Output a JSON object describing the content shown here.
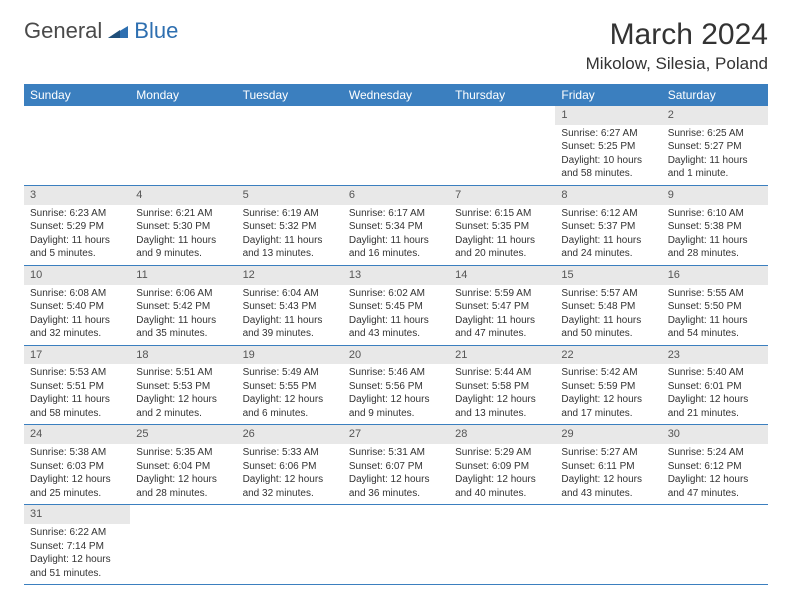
{
  "logo": {
    "part1": "General",
    "part2": "Blue"
  },
  "title": "March 2024",
  "location": "Mikolow, Silesia, Poland",
  "colors": {
    "header_bg": "#3b7fbf",
    "daynum_bg": "#e8e8e8",
    "row_divider": "#3b7fbf"
  },
  "daynames": [
    "Sunday",
    "Monday",
    "Tuesday",
    "Wednesday",
    "Thursday",
    "Friday",
    "Saturday"
  ],
  "weeks": [
    [
      null,
      null,
      null,
      null,
      null,
      {
        "n": "1",
        "sr": "Sunrise: 6:27 AM",
        "ss": "Sunset: 5:25 PM",
        "dl": "Daylight: 10 hours and 58 minutes."
      },
      {
        "n": "2",
        "sr": "Sunrise: 6:25 AM",
        "ss": "Sunset: 5:27 PM",
        "dl": "Daylight: 11 hours and 1 minute."
      }
    ],
    [
      {
        "n": "3",
        "sr": "Sunrise: 6:23 AM",
        "ss": "Sunset: 5:29 PM",
        "dl": "Daylight: 11 hours and 5 minutes."
      },
      {
        "n": "4",
        "sr": "Sunrise: 6:21 AM",
        "ss": "Sunset: 5:30 PM",
        "dl": "Daylight: 11 hours and 9 minutes."
      },
      {
        "n": "5",
        "sr": "Sunrise: 6:19 AM",
        "ss": "Sunset: 5:32 PM",
        "dl": "Daylight: 11 hours and 13 minutes."
      },
      {
        "n": "6",
        "sr": "Sunrise: 6:17 AM",
        "ss": "Sunset: 5:34 PM",
        "dl": "Daylight: 11 hours and 16 minutes."
      },
      {
        "n": "7",
        "sr": "Sunrise: 6:15 AM",
        "ss": "Sunset: 5:35 PM",
        "dl": "Daylight: 11 hours and 20 minutes."
      },
      {
        "n": "8",
        "sr": "Sunrise: 6:12 AM",
        "ss": "Sunset: 5:37 PM",
        "dl": "Daylight: 11 hours and 24 minutes."
      },
      {
        "n": "9",
        "sr": "Sunrise: 6:10 AM",
        "ss": "Sunset: 5:38 PM",
        "dl": "Daylight: 11 hours and 28 minutes."
      }
    ],
    [
      {
        "n": "10",
        "sr": "Sunrise: 6:08 AM",
        "ss": "Sunset: 5:40 PM",
        "dl": "Daylight: 11 hours and 32 minutes."
      },
      {
        "n": "11",
        "sr": "Sunrise: 6:06 AM",
        "ss": "Sunset: 5:42 PM",
        "dl": "Daylight: 11 hours and 35 minutes."
      },
      {
        "n": "12",
        "sr": "Sunrise: 6:04 AM",
        "ss": "Sunset: 5:43 PM",
        "dl": "Daylight: 11 hours and 39 minutes."
      },
      {
        "n": "13",
        "sr": "Sunrise: 6:02 AM",
        "ss": "Sunset: 5:45 PM",
        "dl": "Daylight: 11 hours and 43 minutes."
      },
      {
        "n": "14",
        "sr": "Sunrise: 5:59 AM",
        "ss": "Sunset: 5:47 PM",
        "dl": "Daylight: 11 hours and 47 minutes."
      },
      {
        "n": "15",
        "sr": "Sunrise: 5:57 AM",
        "ss": "Sunset: 5:48 PM",
        "dl": "Daylight: 11 hours and 50 minutes."
      },
      {
        "n": "16",
        "sr": "Sunrise: 5:55 AM",
        "ss": "Sunset: 5:50 PM",
        "dl": "Daylight: 11 hours and 54 minutes."
      }
    ],
    [
      {
        "n": "17",
        "sr": "Sunrise: 5:53 AM",
        "ss": "Sunset: 5:51 PM",
        "dl": "Daylight: 11 hours and 58 minutes."
      },
      {
        "n": "18",
        "sr": "Sunrise: 5:51 AM",
        "ss": "Sunset: 5:53 PM",
        "dl": "Daylight: 12 hours and 2 minutes."
      },
      {
        "n": "19",
        "sr": "Sunrise: 5:49 AM",
        "ss": "Sunset: 5:55 PM",
        "dl": "Daylight: 12 hours and 6 minutes."
      },
      {
        "n": "20",
        "sr": "Sunrise: 5:46 AM",
        "ss": "Sunset: 5:56 PM",
        "dl": "Daylight: 12 hours and 9 minutes."
      },
      {
        "n": "21",
        "sr": "Sunrise: 5:44 AM",
        "ss": "Sunset: 5:58 PM",
        "dl": "Daylight: 12 hours and 13 minutes."
      },
      {
        "n": "22",
        "sr": "Sunrise: 5:42 AM",
        "ss": "Sunset: 5:59 PM",
        "dl": "Daylight: 12 hours and 17 minutes."
      },
      {
        "n": "23",
        "sr": "Sunrise: 5:40 AM",
        "ss": "Sunset: 6:01 PM",
        "dl": "Daylight: 12 hours and 21 minutes."
      }
    ],
    [
      {
        "n": "24",
        "sr": "Sunrise: 5:38 AM",
        "ss": "Sunset: 6:03 PM",
        "dl": "Daylight: 12 hours and 25 minutes."
      },
      {
        "n": "25",
        "sr": "Sunrise: 5:35 AM",
        "ss": "Sunset: 6:04 PM",
        "dl": "Daylight: 12 hours and 28 minutes."
      },
      {
        "n": "26",
        "sr": "Sunrise: 5:33 AM",
        "ss": "Sunset: 6:06 PM",
        "dl": "Daylight: 12 hours and 32 minutes."
      },
      {
        "n": "27",
        "sr": "Sunrise: 5:31 AM",
        "ss": "Sunset: 6:07 PM",
        "dl": "Daylight: 12 hours and 36 minutes."
      },
      {
        "n": "28",
        "sr": "Sunrise: 5:29 AM",
        "ss": "Sunset: 6:09 PM",
        "dl": "Daylight: 12 hours and 40 minutes."
      },
      {
        "n": "29",
        "sr": "Sunrise: 5:27 AM",
        "ss": "Sunset: 6:11 PM",
        "dl": "Daylight: 12 hours and 43 minutes."
      },
      {
        "n": "30",
        "sr": "Sunrise: 5:24 AM",
        "ss": "Sunset: 6:12 PM",
        "dl": "Daylight: 12 hours and 47 minutes."
      }
    ],
    [
      {
        "n": "31",
        "sr": "Sunrise: 6:22 AM",
        "ss": "Sunset: 7:14 PM",
        "dl": "Daylight: 12 hours and 51 minutes."
      },
      null,
      null,
      null,
      null,
      null,
      null
    ]
  ]
}
